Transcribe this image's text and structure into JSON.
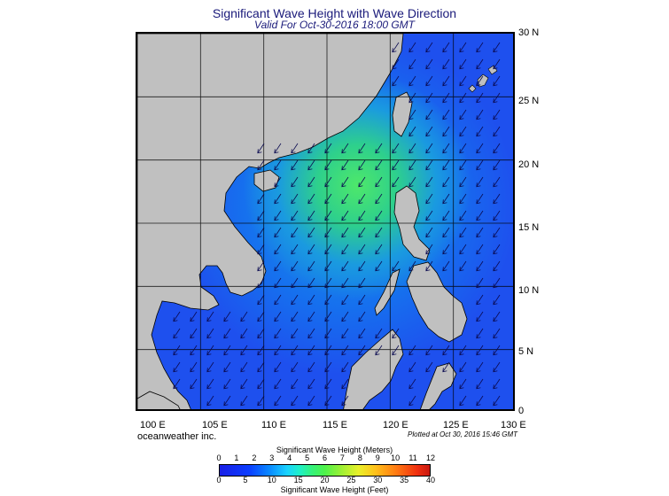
{
  "header": {
    "title": "Significant Wave Height with Wave Direction",
    "subtitle": "Valid For Oct-30-2016 18:00 GMT"
  },
  "map": {
    "latitude_labels": [
      "30 N",
      "25 N",
      "20 N",
      "15 N",
      "10 N",
      "5 N",
      "0"
    ],
    "longitude_labels": [
      "100 E",
      "105 E",
      "110 E",
      "115 E",
      "120 E",
      "125 E",
      "130 E"
    ],
    "lat_range": [
      0,
      30
    ],
    "lon_range": [
      100,
      130
    ],
    "land_color": "#c0c0c0",
    "sea_color": "#1e5af0",
    "arrow_direction": "toward southwest"
  },
  "footer": {
    "brand": "oceanweather inc.",
    "plotted": "Plotted at Oct 30, 2016 15:46 GMT"
  },
  "colorbar": {
    "meters_title": "Significant Wave Height (Meters)",
    "feet_title": "Significant Wave Height (Feet)",
    "meters_ticks": [
      "0",
      "1",
      "2",
      "3",
      "4",
      "5",
      "6",
      "7",
      "8",
      "9",
      "10",
      "11",
      "12"
    ],
    "feet_ticks": [
      "0",
      "5",
      "10",
      "15",
      "20",
      "25",
      "30",
      "35",
      "40"
    ]
  }
}
